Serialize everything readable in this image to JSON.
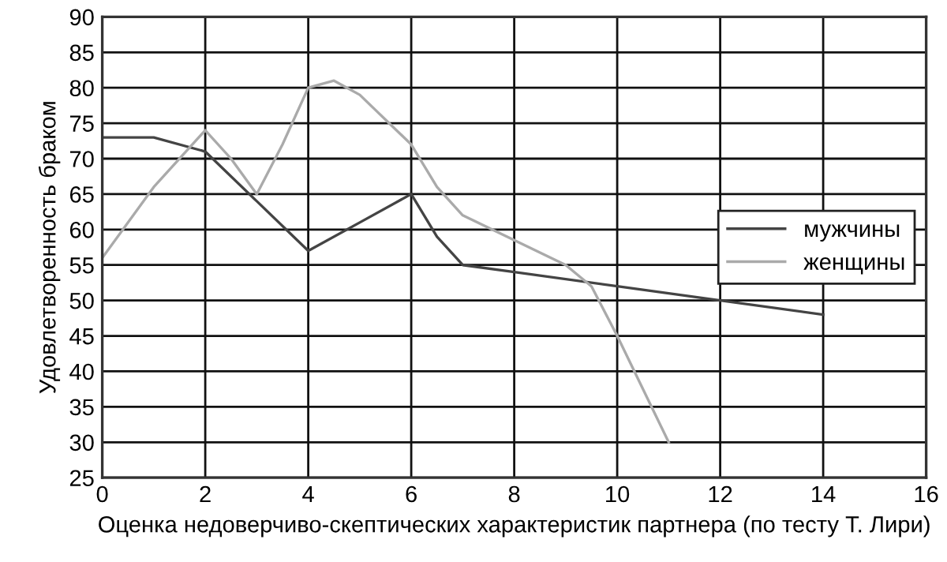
{
  "chart_data": {
    "type": "line",
    "xlabel": "Оценка недоверчиво-скептических характеристик партнера (по тесту Т. Лири)",
    "ylabel": "Удовлетворенность браком",
    "xlim": [
      0,
      16
    ],
    "xticks": [
      0,
      2,
      4,
      6,
      8,
      10,
      12,
      14,
      16
    ],
    "ylim": [
      25,
      90
    ],
    "yticks": [
      25,
      30,
      35,
      40,
      45,
      50,
      55,
      60,
      65,
      70,
      75,
      80,
      85,
      90
    ],
    "grid": true,
    "legend": "right",
    "marker": "none",
    "line_style": "solid",
    "series": [
      {
        "name": "мужчины",
        "color": "#444444",
        "x": [
          0,
          1,
          2,
          3,
          4,
          5,
          6,
          6.5,
          7,
          8,
          10,
          12,
          14
        ],
        "values": [
          73,
          73,
          71,
          64,
          57,
          61,
          65,
          59,
          55,
          54,
          52,
          50,
          48
        ]
      },
      {
        "name": "женщины",
        "color": "#aaaaaa",
        "x": [
          0,
          1,
          2,
          2.5,
          3,
          3.5,
          4,
          4.5,
          5,
          6,
          6.5,
          7,
          8,
          9,
          9.5,
          10,
          11
        ],
        "values": [
          56,
          66,
          74,
          70,
          65,
          72,
          80,
          81,
          79,
          72,
          66,
          62,
          58.5,
          55,
          52,
          45,
          30
        ]
      }
    ]
  }
}
